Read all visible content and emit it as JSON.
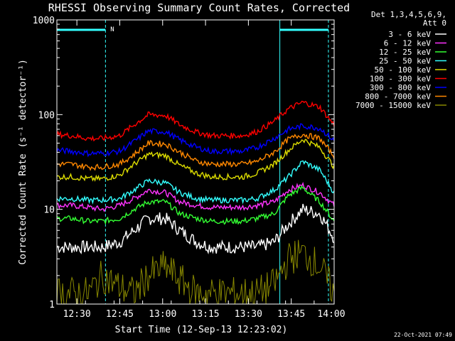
{
  "chart_data": {
    "type": "line",
    "title": "RHESSI Observing Summary Count Rates, Corrected",
    "xlabel": "Start Time (12-Sep-13 12:23:02)",
    "ylabel": "Corrected Count Rate (s⁻¹ detector⁻¹)",
    "yscale": "log",
    "ylim": [
      1,
      1000
    ],
    "xlim": [
      "12:23:02",
      "14:00"
    ],
    "x_tick_labels": [
      "12:30",
      "12:45",
      "13:00",
      "13:15",
      "13:30",
      "13:45",
      "14:00"
    ],
    "y_tick_labels": [
      "1",
      "10",
      "100",
      "1000"
    ],
    "legend_header": [
      "Det 1,3,4,5,6,9,",
      "Att 0"
    ],
    "legend_position": "right",
    "annotation": "N",
    "timestamp": "22-Oct-2021 07:49",
    "time_grid_minutes": [
      0,
      10,
      20,
      30,
      40,
      50,
      60,
      70,
      80,
      90,
      97
    ],
    "series": [
      {
        "name": "3 - 6 keV",
        "color": "#ffffff",
        "values": [
          4,
          4,
          4,
          4,
          4.5,
          6,
          8,
          8,
          6,
          4.5,
          4,
          4,
          4,
          4,
          4.5,
          7,
          10,
          9,
          5
        ]
      },
      {
        "name": "6 - 12 keV",
        "color": "#ff33ff",
        "values": [
          11,
          11,
          10.5,
          10,
          11,
          13,
          16,
          15,
          12,
          11,
          10.5,
          10.5,
          10.5,
          11,
          12,
          16,
          18,
          15,
          11
        ]
      },
      {
        "name": "12 - 25 keV",
        "color": "#33ff33",
        "values": [
          8,
          8,
          7.5,
          7.5,
          8,
          10,
          12,
          12,
          9,
          8,
          7.5,
          7.5,
          7.5,
          8,
          9,
          14,
          17,
          12,
          7.5
        ]
      },
      {
        "name": "25 - 50 keV",
        "color": "#33ffff",
        "values": [
          13,
          13,
          12.5,
          12.5,
          13,
          16,
          20,
          19,
          15,
          13,
          12.5,
          12.5,
          12.5,
          13,
          16,
          22,
          32,
          26,
          15
        ]
      },
      {
        "name": "50 - 100 keV",
        "color": "#dddd00",
        "values": [
          22,
          22,
          21,
          21,
          23,
          30,
          38,
          37,
          29,
          24,
          22,
          22,
          22,
          24,
          30,
          42,
          55,
          45,
          28
        ]
      },
      {
        "name": "100 - 300 keV",
        "color": "#ff0000",
        "values": [
          62,
          60,
          56,
          56,
          60,
          78,
          100,
          98,
          78,
          65,
          60,
          60,
          60,
          66,
          85,
          115,
          135,
          120,
          78
        ]
      },
      {
        "name": "300 - 800 keV",
        "color": "#0000ff",
        "values": [
          42,
          41,
          39,
          39,
          41,
          52,
          67,
          66,
          54,
          45,
          41,
          41,
          41,
          45,
          56,
          70,
          76,
          72,
          53
        ]
      },
      {
        "name": "800 - 7000 keV",
        "color": "#ff8800",
        "values": [
          30,
          30,
          28,
          28,
          30,
          38,
          50,
          49,
          40,
          32,
          30,
          30,
          30,
          32,
          40,
          55,
          62,
          56,
          36
        ]
      },
      {
        "name": "7000 - 15000 keV",
        "color": "#888800",
        "values": [
          1.3,
          1.3,
          1.3,
          2,
          1.5,
          1.3,
          2,
          2.5,
          1.8,
          1.3,
          1.3,
          1.3,
          1.3,
          1.3,
          1.6,
          3,
          3.5,
          2.5,
          1.3
        ]
      }
    ],
    "x_minutes": [
      0,
      5,
      11,
      16,
      22,
      27,
      32,
      38,
      43,
      49,
      54,
      59,
      65,
      70,
      76,
      81,
      86,
      92,
      97
    ]
  }
}
